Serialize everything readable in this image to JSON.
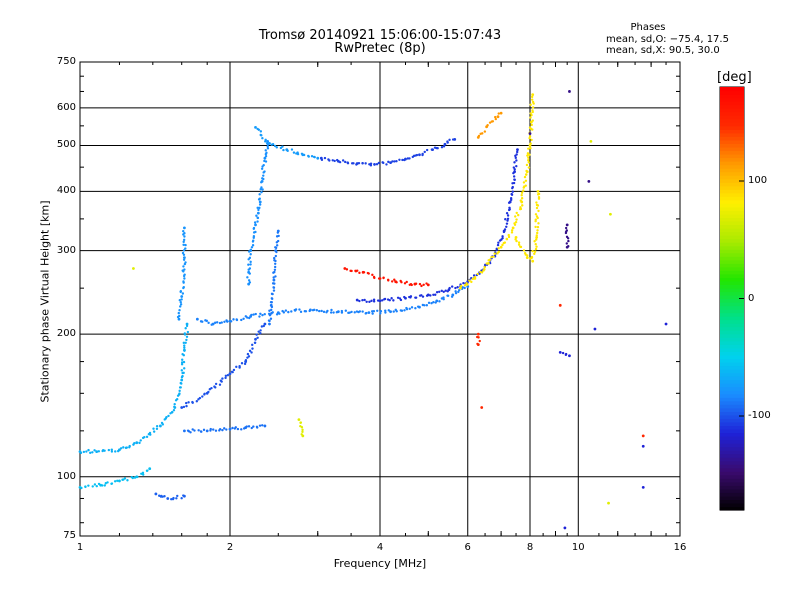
{
  "chart_data": {
    "type": "scatter",
    "title": "Tromsø 20140921 15:06:00-15:07:43",
    "subtitle": "RwPretec (8p)",
    "xlabel": "Frequency [MHz]",
    "ylabel": "Stationary phase Virtual Height [km]",
    "x_scale": "log",
    "y_scale": "log",
    "xlim": [
      1,
      16
    ],
    "ylim": [
      75,
      750
    ],
    "x_ticks": [
      "1",
      "2",
      "4",
      "6",
      "8",
      "10",
      "16"
    ],
    "x_tick_values": [
      1,
      2,
      4,
      6,
      8,
      10,
      16
    ],
    "y_ticks": [
      "75",
      "100",
      "200",
      "300",
      "400",
      "500",
      "600",
      "750"
    ],
    "y_tick_values": [
      75,
      100,
      200,
      300,
      400,
      500,
      600,
      750
    ],
    "grid": true,
    "phases_legend": {
      "title": "Phases",
      "line1": "mean, sd,O: −75.4, 17.5",
      "line2": "mean, sd,X:  90.5, 30.0"
    },
    "colorbar": {
      "label": "[deg]",
      "range": [
        -180,
        180
      ],
      "ticks": [
        "100",
        "0",
        "-100"
      ],
      "tick_values": [
        100,
        0,
        -100
      ],
      "colors": [
        "#000000",
        "#3a0a6e",
        "#1e22d8",
        "#1a8cff",
        "#00d2ee",
        "#00e08a",
        "#22e600",
        "#aaea00",
        "#fff000",
        "#ff9b00",
        "#ff2a00",
        "#ff0000"
      ]
    },
    "traces": [
      {
        "phase_deg": -105,
        "points": [
          [
            3.05,
            470
          ],
          [
            3.3,
            463
          ],
          [
            3.6,
            458
          ],
          [
            3.9,
            456
          ],
          [
            4.2,
            460
          ],
          [
            4.5,
            468
          ],
          [
            4.8,
            478
          ],
          [
            5.1,
            490
          ],
          [
            5.4,
            503
          ],
          [
            5.65,
            515
          ]
        ]
      },
      {
        "phase_deg": -75,
        "points": [
          [
            2.25,
            546
          ],
          [
            2.4,
            505
          ],
          [
            2.6,
            490
          ],
          [
            2.8,
            478
          ],
          [
            3.0,
            470
          ]
        ]
      },
      {
        "phase_deg": -85,
        "points": [
          [
            1.72,
            215
          ],
          [
            1.85,
            210
          ],
          [
            2.0,
            213
          ],
          [
            2.2,
            218
          ],
          [
            2.5,
            222
          ],
          [
            2.9,
            225
          ],
          [
            3.3,
            223
          ],
          [
            3.8,
            222
          ],
          [
            4.2,
            223
          ],
          [
            4.8,
            228
          ],
          [
            5.2,
            235
          ],
          [
            5.6,
            242
          ],
          [
            6.0,
            252
          ]
        ]
      },
      {
        "phase_deg": -110,
        "points": [
          [
            3.6,
            236
          ],
          [
            4.0,
            235
          ],
          [
            4.5,
            238
          ],
          [
            5.0,
            242
          ],
          [
            5.5,
            248
          ],
          [
            6.0,
            258
          ],
          [
            6.4,
            272
          ],
          [
            6.8,
            292
          ],
          [
            7.1,
            330
          ],
          [
            7.3,
            380
          ],
          [
            7.45,
            440
          ],
          [
            7.55,
            490
          ]
        ]
      },
      {
        "phase_deg": 165,
        "points": [
          [
            3.4,
            275
          ],
          [
            3.7,
            270
          ],
          [
            4.0,
            262
          ],
          [
            4.3,
            258
          ],
          [
            4.7,
            255
          ],
          [
            5.0,
            254
          ]
        ]
      },
      {
        "phase_deg": 85,
        "points": [
          [
            5.8,
            250
          ],
          [
            6.2,
            262
          ],
          [
            6.6,
            282
          ],
          [
            7.0,
            305
          ],
          [
            7.4,
            335
          ],
          [
            7.7,
            380
          ],
          [
            7.9,
            440
          ],
          [
            8.0,
            500
          ],
          [
            8.05,
            560
          ],
          [
            8.1,
            640
          ]
        ]
      },
      {
        "phase_deg": 85,
        "points": [
          [
            7.5,
            320
          ],
          [
            7.9,
            290
          ],
          [
            8.1,
            285
          ],
          [
            8.25,
            320
          ],
          [
            8.3,
            400
          ]
        ]
      },
      {
        "phase_deg": 115,
        "points": [
          [
            6.3,
            520
          ],
          [
            6.55,
            548
          ],
          [
            6.9,
            575
          ],
          [
            7.0,
            585
          ]
        ]
      },
      {
        "phase_deg": -80,
        "points": [
          [
            2.18,
            255
          ],
          [
            2.18,
            270
          ],
          [
            2.2,
            300
          ],
          [
            2.25,
            340
          ],
          [
            2.28,
            360
          ],
          [
            2.3,
            380
          ],
          [
            2.32,
            420
          ],
          [
            2.35,
            470
          ],
          [
            2.38,
            510
          ]
        ]
      },
      {
        "phase_deg": -78,
        "points": [
          [
            1.58,
            215
          ],
          [
            1.6,
            240
          ],
          [
            1.62,
            290
          ],
          [
            1.62,
            335
          ]
        ]
      },
      {
        "phase_deg": -65,
        "points": [
          [
            1.0,
            113
          ],
          [
            1.08,
            113
          ],
          [
            1.2,
            114
          ],
          [
            1.3,
            118
          ],
          [
            1.45,
            128
          ],
          [
            1.55,
            140
          ],
          [
            1.6,
            160
          ],
          [
            1.62,
            185
          ],
          [
            1.64,
            210
          ]
        ]
      },
      {
        "phase_deg": -58,
        "points": [
          [
            1.0,
            95
          ],
          [
            1.1,
            96
          ],
          [
            1.2,
            98
          ],
          [
            1.3,
            100
          ],
          [
            1.38,
            104
          ]
        ]
      },
      {
        "phase_deg": -95,
        "points": [
          [
            1.42,
            92
          ],
          [
            1.5,
            90
          ],
          [
            1.62,
            91
          ]
        ]
      },
      {
        "phase_deg": -90,
        "points": [
          [
            1.62,
            125
          ],
          [
            1.8,
            125
          ],
          [
            2.0,
            126
          ],
          [
            2.15,
            127
          ],
          [
            2.35,
            128
          ]
        ]
      },
      {
        "phase_deg": -100,
        "points": [
          [
            1.6,
            140
          ],
          [
            1.8,
            150
          ],
          [
            2.0,
            165
          ],
          [
            2.15,
            175
          ],
          [
            2.25,
            195
          ],
          [
            2.35,
            210
          ]
        ]
      },
      {
        "phase_deg": -88,
        "points": [
          [
            2.4,
            210
          ],
          [
            2.42,
            230
          ],
          [
            2.45,
            260
          ],
          [
            2.47,
            300
          ],
          [
            2.5,
            330
          ]
        ]
      },
      {
        "phase_deg": -140,
        "points": [
          [
            8.0,
            530
          ],
          [
            9.5,
            340
          ],
          [
            9.5,
            305
          ],
          [
            9.6,
            650
          ],
          [
            10.5,
            420
          ]
        ]
      },
      {
        "phase_deg": 150,
        "points": [
          [
            6.3,
            200
          ],
          [
            6.3,
            190
          ],
          [
            6.4,
            140
          ],
          [
            9.2,
            230
          ],
          [
            13.5,
            122
          ]
        ]
      },
      {
        "phase_deg": 70,
        "points": [
          [
            10.6,
            510
          ],
          [
            11.6,
            358
          ],
          [
            11.5,
            88
          ],
          [
            2.75,
            132
          ],
          [
            2.8,
            122
          ],
          [
            1.28,
            275
          ]
        ]
      },
      {
        "phase_deg": -115,
        "points": [
          [
            9.2,
            183
          ],
          [
            9.6,
            180
          ],
          [
            13.5,
            95
          ],
          [
            9.4,
            78
          ],
          [
            13.5,
            116
          ],
          [
            10.8,
            205
          ],
          [
            15.0,
            210
          ]
        ]
      }
    ]
  }
}
